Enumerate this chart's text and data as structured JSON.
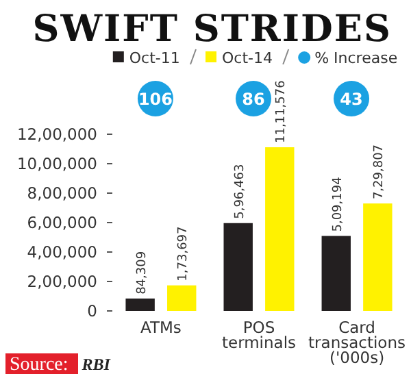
{
  "chart_data": {
    "type": "bar",
    "title": "SWIFT STRIDES",
    "categories": [
      "ATMs",
      "POS terminals",
      "Card transactions ('000s)"
    ],
    "series": [
      {
        "name": "Oct-11",
        "color": "#231f20",
        "values": [
          84309,
          596463,
          509194
        ],
        "value_labels": [
          "84,309",
          "5,96,463",
          "5,09,194"
        ]
      },
      {
        "name": "Oct-14",
        "color": "#fff200",
        "values": [
          173697,
          1111576,
          729807
        ],
        "value_labels": [
          "1,73,697",
          "11,11,576",
          "7,29,807"
        ]
      },
      {
        "name": "% Increase",
        "type": "scatter",
        "color": "#1ba1e2",
        "values": [
          null,
          null,
          null
        ]
      }
    ],
    "ylim": [
      0,
      1200000
    ],
    "yticks": [
      {
        "value": 0,
        "label": "0"
      },
      {
        "value": 200000,
        "label": "2,00,000"
      },
      {
        "value": 400000,
        "label": "4,00,000"
      },
      {
        "value": 600000,
        "label": "6,00,000"
      },
      {
        "value": 800000,
        "label": "8,00,000"
      },
      {
        "value": 1000000,
        "label": "10,00,000"
      },
      {
        "value": 1200000,
        "label": "12,00,000"
      }
    ],
    "legend": "top",
    "marker": "circle",
    "annotations": [
      "106",
      "86",
      "43",
      "Source: RBI"
    ]
  }
}
